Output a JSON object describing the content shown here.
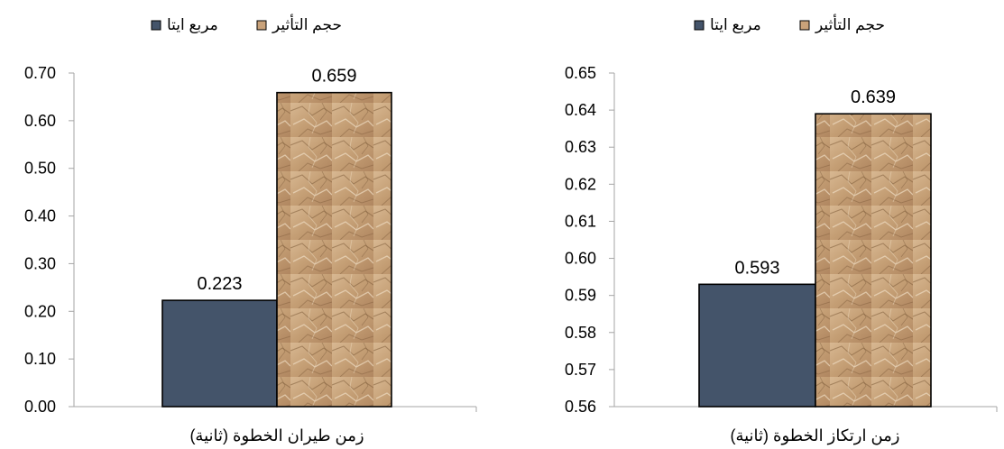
{
  "colors": {
    "eta_squared": "#44546a",
    "effect_size": "#c9a27a",
    "effect_size_dark": "#8a6440",
    "axis": "#a6a6a6",
    "bar_border": "#000000"
  },
  "chart_data": [
    {
      "type": "bar",
      "title": "",
      "xlabel": "",
      "ylabel": "",
      "categories": [
        "زمن طيران الخطوة (ثانية)"
      ],
      "series": [
        {
          "name": "مربع ايتا",
          "values": [
            0.223
          ],
          "fill": "solid"
        },
        {
          "name": "حجم التأثير",
          "values": [
            0.659
          ],
          "fill": "crumpled-paper-texture"
        }
      ],
      "data_labels": [
        "0.223",
        "0.659"
      ],
      "ylim": [
        0,
        0.7
      ],
      "yticks": [
        "0.00",
        "0.10",
        "0.20",
        "0.30",
        "0.40",
        "0.50",
        "0.60",
        "0.70"
      ],
      "grid": false,
      "legend": {
        "position": "top",
        "entries": [
          "حجم التأثير",
          "مربع ايتا"
        ]
      }
    },
    {
      "type": "bar",
      "title": "",
      "xlabel": "",
      "ylabel": "",
      "categories": [
        "زمن ارتكاز الخطوة (ثانية)"
      ],
      "series": [
        {
          "name": "مربع ايتا",
          "values": [
            0.593
          ],
          "fill": "solid"
        },
        {
          "name": "حجم التأثير",
          "values": [
            0.639
          ],
          "fill": "crumpled-paper-texture"
        }
      ],
      "data_labels": [
        "0.593",
        "0.639"
      ],
      "ylim": [
        0.56,
        0.65
      ],
      "yticks": [
        "0.56",
        "0.57",
        "0.58",
        "0.59",
        "0.60",
        "0.61",
        "0.62",
        "0.63",
        "0.64",
        "0.65"
      ],
      "grid": false,
      "legend": {
        "position": "top",
        "entries": [
          "حجم التأثير",
          "مربع ايتا"
        ]
      }
    }
  ]
}
